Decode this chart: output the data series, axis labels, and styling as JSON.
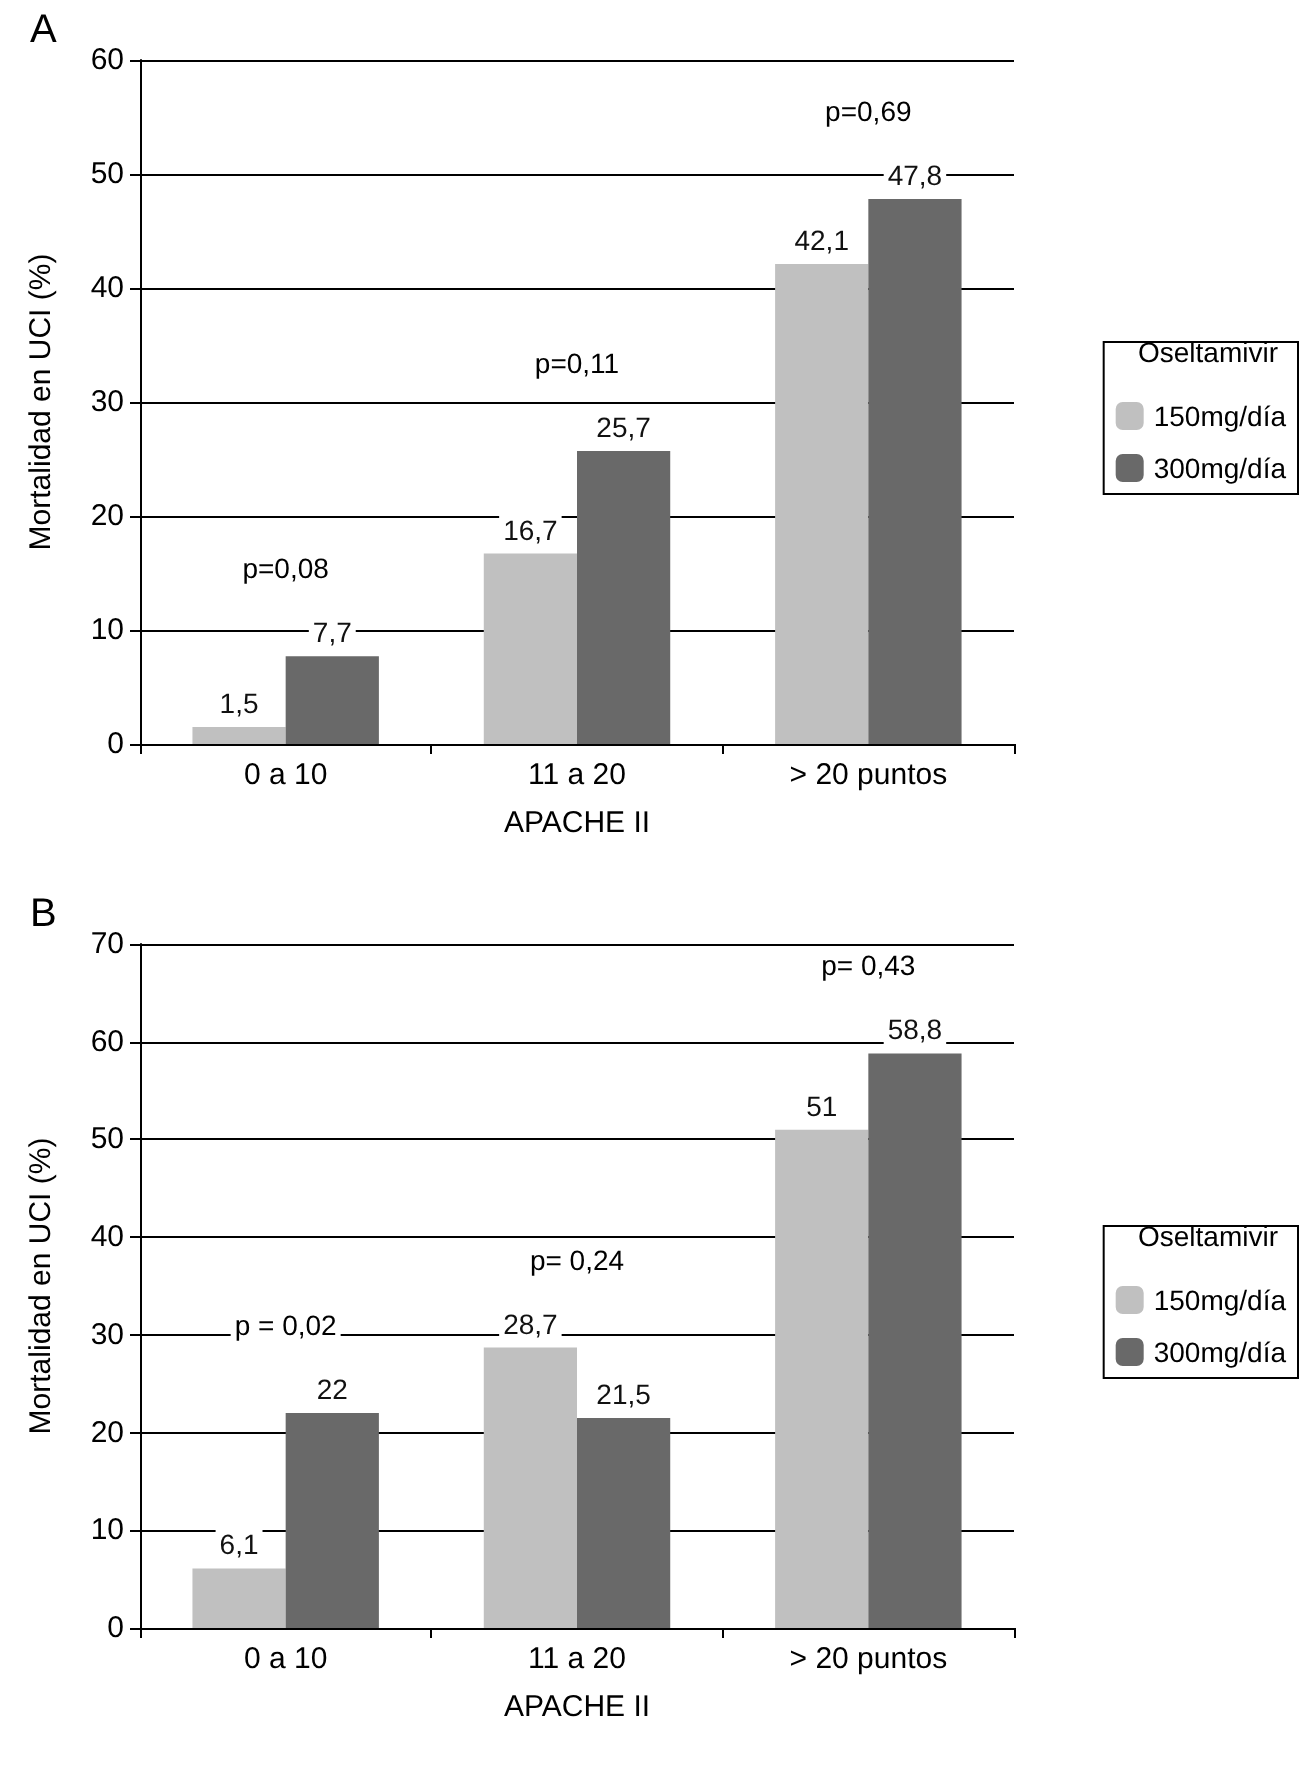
{
  "chart_data": [
    {
      "type": "bar",
      "title": "A",
      "xlabel": "APACHE II",
      "ylabel": "Mortalidad en UCI (%)",
      "legend_title": "Oseltamivir",
      "categories": [
        "0 a 10",
        "11 a 20",
        "> 20 puntos"
      ],
      "series": [
        {
          "name": "150mg/día",
          "color": "#c0c0c0",
          "values": [
            1.5,
            16.7,
            42.1
          ],
          "value_labels": [
            "1,5",
            "16,7",
            "42,1"
          ]
        },
        {
          "name": "300mg/día",
          "color": "#696969",
          "values": [
            7.7,
            25.7,
            47.8
          ],
          "value_labels": [
            "7,7",
            "25,7",
            "47,8"
          ]
        }
      ],
      "ylim": [
        0,
        60
      ],
      "yticks": [
        0,
        10,
        20,
        30,
        40,
        50,
        60
      ],
      "grid": "y",
      "legend": "right",
      "annotations": [
        "p=0,08",
        "p=0,11",
        "p=0,69"
      ]
    },
    {
      "type": "bar",
      "title": "B",
      "xlabel": "APACHE II",
      "ylabel": "Mortalidad en UCI (%)",
      "legend_title": "Oseltamivir",
      "categories": [
        "0 a 10",
        "11 a 20",
        "> 20 puntos"
      ],
      "series": [
        {
          "name": "150mg/día",
          "color": "#c0c0c0",
          "values": [
            6.1,
            28.7,
            51
          ],
          "value_labels": [
            "6,1",
            "28,7",
            "51"
          ]
        },
        {
          "name": "300mg/día",
          "color": "#696969",
          "values": [
            22,
            21.5,
            58.8
          ],
          "value_labels": [
            "22",
            "21,5",
            "58,8"
          ]
        }
      ],
      "ylim": [
        0,
        70
      ],
      "yticks": [
        0,
        10,
        20,
        30,
        40,
        50,
        60,
        70
      ],
      "grid": "y",
      "legend": "right",
      "annotations": [
        "p = 0,02",
        "p= 0,24",
        "p= 0,43"
      ]
    }
  ]
}
